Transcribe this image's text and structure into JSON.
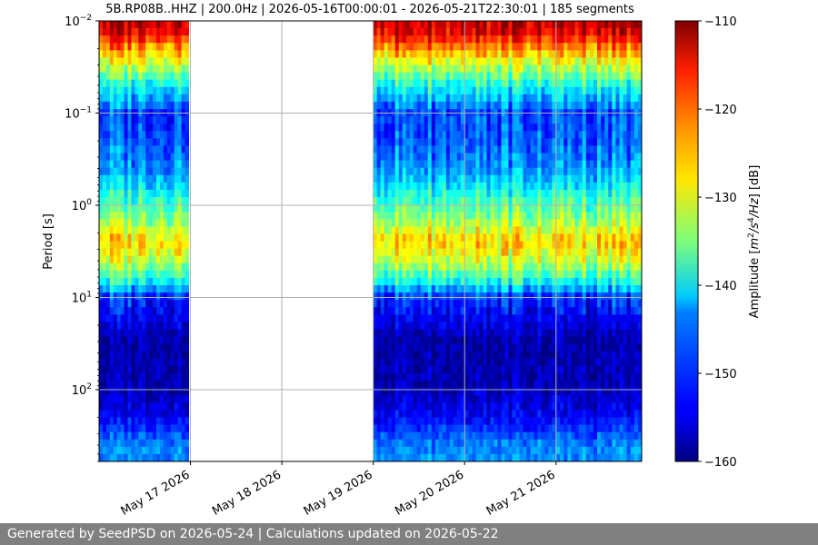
{
  "chart_data": {
    "type": "heatmap",
    "title": "5B.RP08B..HHZ | 200.0Hz | 2026-05-16T00:00:01 - 2026-05-21T22:30:01 | 185 segments",
    "xlabel": "",
    "ylabel": "Period [s]",
    "y_scale": "log",
    "y_inverted": true,
    "ylim": [
      0.01,
      600
    ],
    "y_ticks": [
      {
        "value": 0.01,
        "base": "10",
        "exp": "−2"
      },
      {
        "value": 0.1,
        "base": "10",
        "exp": "−1"
      },
      {
        "value": 1,
        "base": "10",
        "exp": "0"
      },
      {
        "value": 10,
        "base": "10",
        "exp": "1"
      },
      {
        "value": 100,
        "base": "10",
        "exp": "2"
      }
    ],
    "xlim": [
      "2026-05-16T00:00:01",
      "2026-05-21T22:30:01"
    ],
    "x_ticks": [
      {
        "value": "2026-05-17",
        "label": "May 17 2026"
      },
      {
        "value": "2026-05-18",
        "label": "May 18 2026"
      },
      {
        "value": "2026-05-19",
        "label": "May 19 2026"
      },
      {
        "value": "2026-05-20",
        "label": "May 20 2026"
      },
      {
        "value": "2026-05-21",
        "label": "May 21 2026"
      }
    ],
    "data_segments": [
      {
        "start": "2026-05-16T00:00:01",
        "end": "2026-05-16T23:30:00"
      },
      {
        "start": "2026-05-19T00:00:00",
        "end": "2026-05-19T23:55:00"
      },
      {
        "start": "2026-05-20T00:05:00",
        "end": "2026-05-20T23:55:00"
      },
      {
        "start": "2026-05-21T00:05:00",
        "end": "2026-05-21T22:30:01"
      }
    ],
    "spectral_profile_db": [
      {
        "period": 0.012,
        "db": -113
      },
      {
        "period": 0.015,
        "db": -117
      },
      {
        "period": 0.02,
        "db": -123
      },
      {
        "period": 0.03,
        "db": -131
      },
      {
        "period": 0.05,
        "db": -140
      },
      {
        "period": 0.1,
        "db": -150
      },
      {
        "period": 0.2,
        "db": -149
      },
      {
        "period": 0.4,
        "db": -146
      },
      {
        "period": 0.8,
        "db": -139
      },
      {
        "period": 1.5,
        "db": -133
      },
      {
        "period": 2.5,
        "db": -126
      },
      {
        "period": 4,
        "db": -131
      },
      {
        "period": 7,
        "db": -141
      },
      {
        "period": 10,
        "db": -151
      },
      {
        "period": 30,
        "db": -158
      },
      {
        "period": 100,
        "db": -157
      },
      {
        "period": 200,
        "db": -154
      },
      {
        "period": 400,
        "db": -147
      }
    ],
    "grid": true,
    "colorbar": {
      "label": "Amplitude [m²/s⁴/Hz] [dB]",
      "colormap": "jet",
      "range": [
        -160,
        -110
      ],
      "ticks": [
        -110,
        -120,
        -130,
        -140,
        -150,
        -160
      ],
      "tick_labels": [
        "−110",
        "−120",
        "−130",
        "−140",
        "−150",
        "−160"
      ]
    }
  },
  "footer": {
    "text": "Generated by SeedPSD on 2026-05-24 | Calculations updated on 2026-05-22"
  }
}
